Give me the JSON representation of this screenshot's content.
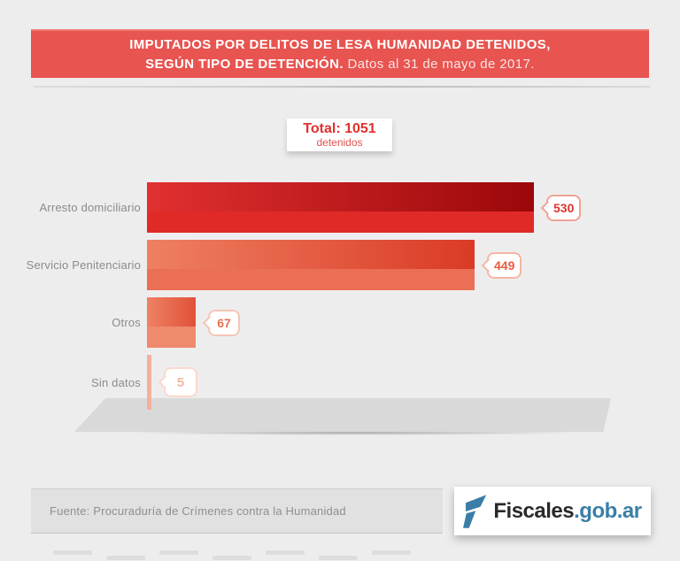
{
  "header": {
    "background": "#e85450",
    "title_line1": "IMPUTADOS POR DELITOS DE LESA HUMANIDAD DETENIDOS,",
    "title_line2": "SEGÚN TIPO DE DETENCIÓN.",
    "date_note": " Datos al 31 de mayo de 2017."
  },
  "total_card": {
    "total_label": "Total: 1051",
    "sub_label": "detenidos",
    "text_color": "#e0312e"
  },
  "chart_data": {
    "type": "bar",
    "orientation": "horizontal",
    "title": "Imputados por delitos de lesa humanidad detenidos, según tipo de detención",
    "subtitle": "Datos al 31 de mayo de 2017",
    "total": 1051,
    "total_label": "Total: 1051 detenidos",
    "categories": [
      "Arresto domiciliario",
      "Servicio Penitenciario",
      "Otros",
      "Sin datos"
    ],
    "values": [
      530,
      449,
      67,
      5
    ],
    "xlim": [
      0,
      530
    ],
    "grid": false,
    "legend": false,
    "value_label_style": "badge right of bar",
    "bars": [
      {
        "label": "Arresto domiciliario",
        "value": 530,
        "gradient_from": "#e13030",
        "gradient_to": "#9b070a",
        "base_color": "#e02a28",
        "badge_border": "#efa396",
        "badge_text": "#dc3430"
      },
      {
        "label": "Servicio Penitenciario",
        "value": 449,
        "gradient_from": "#ee8061",
        "gradient_to": "#da3a26",
        "base_color": "#eb6f55",
        "badge_border": "#f4b6a3",
        "badge_text": "#e95b3c"
      },
      {
        "label": "Otros",
        "value": 67,
        "gradient_from": "#ee8163",
        "gradient_to": "#e15139",
        "base_color": "#ee8a6d",
        "badge_border": "#f6c5b4",
        "badge_text": "#eb6f4e"
      },
      {
        "label": "Sin datos",
        "value": 5,
        "gradient_from": "#f4b09e",
        "gradient_to": "#f4b09e",
        "base_color": "#f4b09e",
        "badge_border": "#f9d9cd",
        "badge_text": "#f3b6a3"
      }
    ]
  },
  "footer": {
    "source_text": "Fuente: Procuraduría de Crímenes contra la Humanidad"
  },
  "logo": {
    "name_dark": "Fiscales",
    "name_blue": ".gob.ar",
    "icon_color": "#3a7ea7",
    "dark_color": "#2b2a2a"
  }
}
